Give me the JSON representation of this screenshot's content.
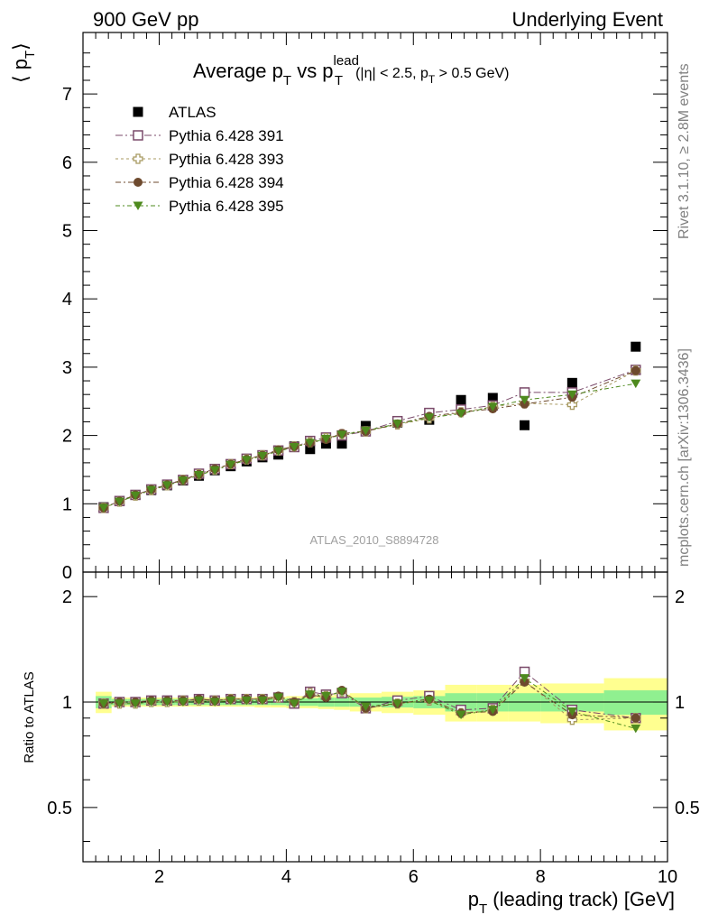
{
  "header": {
    "left": "900 GeV pp",
    "right": "Underlying Event"
  },
  "title": {
    "main": "Average p",
    "sub_t": "T",
    "mid": " vs p",
    "sup_lead": "lead",
    "sub_t2": "T",
    "cut": "(|η| < 2.5, p",
    "cut_sub": "T",
    "cut_end": " > 0.5 GeV)"
  },
  "ylabel_top": "⟨ p",
  "ylabel_top_sub": "T",
  "ylabel_top_end": "⟩",
  "ylabel_bottom": "Ratio to ATLAS",
  "xlabel": "p",
  "xlabel_sub": "T",
  "xlabel_end": " (leading track) [GeV]",
  "side_right_top": "Rivet 3.1.10, ≥ 2.8M events",
  "side_right_bottom": "mcplots.cern.ch [arXiv:1306.3436]",
  "watermark": "ATLAS_2010_S8894728",
  "legend": [
    "ATLAS",
    "Pythia 6.428 391",
    "Pythia 6.428 393",
    "Pythia 6.428 394",
    "Pythia 6.428 395"
  ],
  "colors": {
    "atlas": "#000000",
    "p391": "#7a4a6a",
    "p393": "#a89a62",
    "p394": "#6e4a2e",
    "p395": "#4e8a1e",
    "band_inner": "#90f090",
    "band_outer": "#ffff90"
  },
  "chart_data": {
    "type": "scatter",
    "x_range": [
      0.8,
      10.0
    ],
    "top_ylim": [
      0,
      7.9
    ],
    "ratio_ylim": [
      0.35,
      2.35
    ],
    "ratio_log": true,
    "x_ticks": [
      "2",
      "4",
      "6",
      "8",
      "10"
    ],
    "top_y_ticks": [
      "0",
      "1",
      "2",
      "3",
      "4",
      "5",
      "6",
      "7"
    ],
    "ratio_y_ticks": [
      "0.5",
      "1",
      "2"
    ],
    "x": [
      1.125,
      1.375,
      1.625,
      1.875,
      2.125,
      2.375,
      2.625,
      2.875,
      3.125,
      3.375,
      3.625,
      3.875,
      4.125,
      4.375,
      4.625,
      4.875,
      5.25,
      5.75,
      6.25,
      6.75,
      7.25,
      7.75,
      8.5,
      9.5
    ],
    "series": [
      {
        "name": "ATLAS",
        "values": [
          0.95,
          1.04,
          1.13,
          1.2,
          1.27,
          1.34,
          1.41,
          1.49,
          1.55,
          1.62,
          1.68,
          1.72,
          1.84,
          1.8,
          1.88,
          1.88,
          2.14,
          2.19,
          2.23,
          2.52,
          2.55,
          2.15,
          2.77,
          3.3
        ]
      },
      {
        "name": "Pythia 6.428 391",
        "values": [
          0.94,
          1.04,
          1.13,
          1.21,
          1.28,
          1.35,
          1.44,
          1.51,
          1.58,
          1.66,
          1.71,
          1.78,
          1.83,
          1.92,
          1.97,
          2.0,
          2.06,
          2.21,
          2.33,
          2.38,
          2.44,
          2.63,
          2.63,
          2.96
        ]
      },
      {
        "name": "Pythia 6.428 393",
        "values": [
          0.94,
          1.03,
          1.12,
          1.2,
          1.27,
          1.35,
          1.43,
          1.5,
          1.58,
          1.65,
          1.71,
          1.78,
          1.84,
          1.9,
          1.96,
          2.02,
          2.06,
          2.16,
          2.25,
          2.34,
          2.42,
          2.47,
          2.45,
          2.95
        ]
      },
      {
        "name": "Pythia 6.428 394",
        "values": [
          0.94,
          1.04,
          1.13,
          1.21,
          1.28,
          1.35,
          1.43,
          1.51,
          1.58,
          1.65,
          1.71,
          1.79,
          1.84,
          1.89,
          1.94,
          2.03,
          2.06,
          2.17,
          2.28,
          2.34,
          2.39,
          2.46,
          2.56,
          2.95
        ]
      },
      {
        "name": "Pythia 6.428 395",
        "values": [
          0.94,
          1.03,
          1.12,
          1.2,
          1.27,
          1.34,
          1.42,
          1.49,
          1.57,
          1.64,
          1.7,
          1.77,
          1.83,
          1.89,
          1.95,
          2.01,
          2.07,
          2.17,
          2.26,
          2.32,
          2.42,
          2.52,
          2.6,
          2.76
        ]
      }
    ],
    "ratio_series": [
      {
        "name": "Pythia 6.428 391",
        "values": [
          0.99,
          1.0,
          1.0,
          1.01,
          1.01,
          1.01,
          1.02,
          1.01,
          1.02,
          1.02,
          1.02,
          1.03,
          0.99,
          1.07,
          1.05,
          1.06,
          0.96,
          1.01,
          1.04,
          0.95,
          0.96,
          1.22,
          0.95,
          0.9
        ]
      },
      {
        "name": "Pythia 6.428 393",
        "values": [
          0.99,
          0.99,
          0.99,
          1.0,
          1.0,
          1.01,
          1.01,
          1.01,
          1.02,
          1.02,
          1.02,
          1.03,
          1.0,
          1.06,
          1.04,
          1.07,
          0.96,
          0.99,
          1.01,
          0.93,
          0.95,
          1.15,
          0.89,
          0.9
        ]
      },
      {
        "name": "Pythia 6.428 394",
        "values": [
          0.99,
          1.0,
          1.0,
          1.01,
          1.01,
          1.01,
          1.02,
          1.01,
          1.02,
          1.02,
          1.02,
          1.04,
          1.0,
          1.05,
          1.03,
          1.08,
          0.96,
          0.99,
          1.02,
          0.93,
          0.94,
          1.14,
          0.92,
          0.9
        ]
      },
      {
        "name": "Pythia 6.428 395",
        "values": [
          0.99,
          0.99,
          0.99,
          1.0,
          1.0,
          1.0,
          1.01,
          1.0,
          1.01,
          1.01,
          1.01,
          1.03,
          0.99,
          1.05,
          1.04,
          1.07,
          0.97,
          0.99,
          1.01,
          0.92,
          0.95,
          1.17,
          0.94,
          0.84
        ]
      }
    ],
    "bands": [
      {
        "x0": 1.0,
        "x1": 1.25,
        "inner": 0.04,
        "outer": 0.07
      },
      {
        "x0": 1.25,
        "x1": 1.5,
        "inner": 0.02,
        "outer": 0.03
      },
      {
        "x0": 1.5,
        "x1": 1.75,
        "inner": 0.02,
        "outer": 0.03
      },
      {
        "x0": 1.75,
        "x1": 2.0,
        "inner": 0.02,
        "outer": 0.03
      },
      {
        "x0": 2.0,
        "x1": 2.25,
        "inner": 0.02,
        "outer": 0.03
      },
      {
        "x0": 2.25,
        "x1": 2.5,
        "inner": 0.02,
        "outer": 0.03
      },
      {
        "x0": 2.5,
        "x1": 2.75,
        "inner": 0.02,
        "outer": 0.03
      },
      {
        "x0": 2.75,
        "x1": 3.0,
        "inner": 0.02,
        "outer": 0.03
      },
      {
        "x0": 3.0,
        "x1": 3.25,
        "inner": 0.02,
        "outer": 0.03
      },
      {
        "x0": 3.25,
        "x1": 3.5,
        "inner": 0.02,
        "outer": 0.03
      },
      {
        "x0": 3.5,
        "x1": 3.75,
        "inner": 0.02,
        "outer": 0.035
      },
      {
        "x0": 3.75,
        "x1": 4.0,
        "inner": 0.02,
        "outer": 0.035
      },
      {
        "x0": 4.0,
        "x1": 4.25,
        "inner": 0.025,
        "outer": 0.04
      },
      {
        "x0": 4.25,
        "x1": 4.5,
        "inner": 0.025,
        "outer": 0.04
      },
      {
        "x0": 4.5,
        "x1": 4.75,
        "inner": 0.03,
        "outer": 0.045
      },
      {
        "x0": 4.75,
        "x1": 5.0,
        "inner": 0.03,
        "outer": 0.05
      },
      {
        "x0": 5.0,
        "x1": 5.5,
        "inner": 0.03,
        "outer": 0.06
      },
      {
        "x0": 5.5,
        "x1": 6.0,
        "inner": 0.035,
        "outer": 0.07
      },
      {
        "x0": 6.0,
        "x1": 6.5,
        "inner": 0.04,
        "outer": 0.08
      },
      {
        "x0": 6.5,
        "x1": 7.0,
        "inner": 0.06,
        "outer": 0.12
      },
      {
        "x0": 7.0,
        "x1": 7.5,
        "inner": 0.06,
        "outer": 0.12
      },
      {
        "x0": 7.5,
        "x1": 8.0,
        "inner": 0.06,
        "outer": 0.12
      },
      {
        "x0": 8.0,
        "x1": 9.0,
        "inner": 0.06,
        "outer": 0.13
      },
      {
        "x0": 9.0,
        "x1": 10.0,
        "inner": 0.08,
        "outer": 0.17
      }
    ]
  }
}
